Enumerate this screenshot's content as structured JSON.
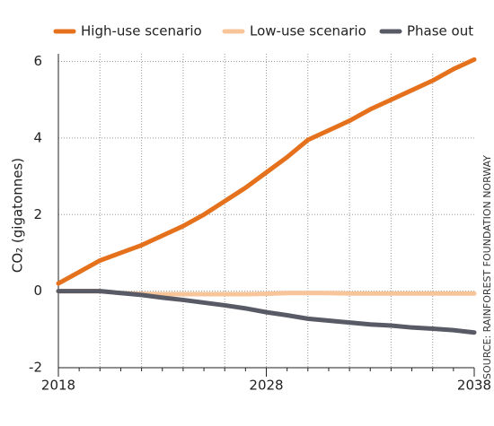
{
  "chart_data": {
    "type": "line",
    "y_label": "CO₂ (gigatonnes)",
    "source": "SOURCE: RAINFOREST FOUNDATION NORWAY",
    "x": [
      2018,
      2019,
      2020,
      2021,
      2022,
      2023,
      2024,
      2025,
      2026,
      2027,
      2028,
      2029,
      2030,
      2031,
      2032,
      2033,
      2034,
      2035,
      2036,
      2037,
      2038
    ],
    "series": [
      {
        "name": "High-use scenario",
        "color": "#e5711c",
        "values": [
          0.2,
          0.5,
          0.8,
          1.0,
          1.2,
          1.45,
          1.7,
          2.0,
          2.35,
          2.7,
          3.1,
          3.5,
          3.95,
          4.2,
          4.45,
          4.75,
          5.0,
          5.25,
          5.5,
          5.8,
          6.05
        ]
      },
      {
        "name": "Low-use scenario",
        "color": "#f8c49a",
        "values": [
          0,
          0,
          0,
          -0.05,
          -0.07,
          -0.08,
          -0.08,
          -0.08,
          -0.08,
          -0.08,
          -0.07,
          -0.05,
          -0.05,
          -0.05,
          -0.06,
          -0.06,
          -0.06,
          -0.06,
          -0.06,
          -0.06,
          -0.06
        ]
      },
      {
        "name": "Phase out",
        "color": "#585a65",
        "values": [
          0,
          0,
          0,
          -0.05,
          -0.1,
          -0.17,
          -0.23,
          -0.3,
          -0.37,
          -0.45,
          -0.55,
          -0.63,
          -0.72,
          -0.77,
          -0.82,
          -0.87,
          -0.9,
          -0.95,
          -0.98,
          -1.02,
          -1.08
        ]
      }
    ],
    "xlim": [
      2018,
      2038
    ],
    "xticks": [
      2018,
      2028,
      2038
    ],
    "xgrid": [
      2020,
      2022,
      2024,
      2026,
      2028,
      2030,
      2032,
      2034,
      2036
    ],
    "ylim": [
      -2,
      6.2
    ],
    "yticks": [
      -2,
      0,
      2,
      4,
      6
    ],
    "grid": true,
    "legend": "top"
  }
}
